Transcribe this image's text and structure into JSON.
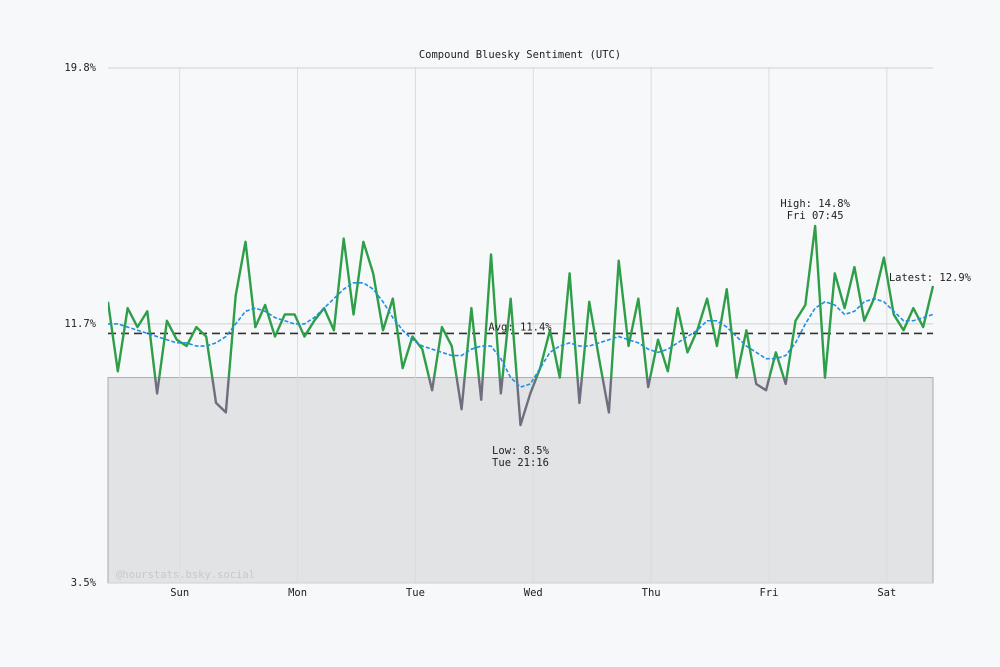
{
  "chart_data": {
    "type": "line",
    "title": "Compound Bluesky Sentiment (UTC)",
    "xlim": [
      0,
      84
    ],
    "xticks": [
      {
        "value": 7.3,
        "label": "Sun"
      },
      {
        "value": 19.3,
        "label": "Mon"
      },
      {
        "value": 31.3,
        "label": "Tue"
      },
      {
        "value": 43.3,
        "label": "Wed"
      },
      {
        "value": 55.3,
        "label": "Thu"
      },
      {
        "value": 67.3,
        "label": "Fri"
      },
      {
        "value": 79.3,
        "label": "Sat"
      }
    ],
    "ylim": [
      3.5,
      19.8
    ],
    "yticks": [
      {
        "value": 3.5,
        "label": "3.5%"
      },
      {
        "value": 11.7,
        "label": "11.7%"
      },
      {
        "value": 19.8,
        "label": "19.8%"
      }
    ],
    "grid": true,
    "threshold": 10,
    "threshold_color": "#e2e3e5",
    "below_color": "#6c6f7d",
    "series": [
      {
        "color": "#2e9e48",
        "values": [
          12.4,
          10.2,
          12.2,
          11.6,
          12.1,
          9.5,
          11.8,
          11.2,
          11.0,
          11.6,
          11.3,
          9.2,
          8.9,
          12.6,
          14.3,
          11.6,
          12.3,
          11.3,
          12.0,
          12.0,
          11.3,
          11.8,
          12.2,
          11.5,
          14.4,
          12.0,
          14.3,
          13.3,
          11.5,
          12.5,
          10.3,
          11.3,
          10.9,
          9.6,
          11.6,
          11.0,
          9.0,
          12.2,
          9.3,
          13.9,
          9.5,
          12.5,
          8.5,
          9.5,
          10.3,
          11.5,
          10.0,
          13.3,
          9.2,
          12.4,
          10.6,
          8.9,
          13.7,
          11.0,
          12.5,
          9.7,
          11.2,
          10.2,
          12.2,
          10.8,
          11.5,
          12.5,
          11.0,
          12.8,
          10.0,
          11.5,
          9.8,
          9.6,
          10.8,
          9.8,
          11.8,
          12.3,
          14.8,
          10.0,
          13.3,
          12.2,
          13.5,
          11.8,
          12.5,
          13.8,
          12.0,
          11.5,
          12.2,
          11.6,
          12.9
        ]
      },
      {
        "color": "#1e8fe1",
        "dashed": true,
        "values": [
          11.7,
          11.7,
          11.6,
          11.5,
          11.4,
          11.3,
          11.2,
          11.1,
          11.1,
          11.0,
          11.0,
          11.1,
          11.3,
          11.7,
          12.1,
          12.2,
          12.1,
          11.9,
          11.8,
          11.7,
          11.7,
          11.9,
          12.2,
          12.5,
          12.8,
          13.0,
          13.0,
          12.8,
          12.4,
          11.9,
          11.5,
          11.2,
          11.0,
          10.9,
          10.8,
          10.7,
          10.7,
          10.9,
          11.0,
          11.0,
          10.6,
          10.0,
          9.7,
          9.8,
          10.3,
          10.8,
          11.0,
          11.1,
          11.0,
          11.0,
          11.1,
          11.2,
          11.3,
          11.2,
          11.1,
          10.9,
          10.8,
          10.9,
          11.1,
          11.3,
          11.5,
          11.8,
          11.8,
          11.6,
          11.3,
          11.0,
          10.8,
          10.6,
          10.6,
          10.7,
          11.1,
          11.7,
          12.2,
          12.4,
          12.3,
          12.0,
          12.1,
          12.4,
          12.5,
          12.4,
          12.1,
          11.8,
          11.8,
          11.9,
          12.0
        ]
      }
    ],
    "average": {
      "value": 11.4,
      "label": "Avg: 11.4%"
    },
    "high": {
      "x": 72,
      "value": 14.8,
      "label": "High: 14.8%",
      "time": "Fri 07:45"
    },
    "low": {
      "x": 42,
      "value": 8.5,
      "label": "Low: 8.5%",
      "time": "Tue 21:16"
    },
    "latest": {
      "x": 84,
      "value": 12.9,
      "label": "Latest: 12.9%"
    },
    "watermark": "@hourstats.bsky.social"
  }
}
